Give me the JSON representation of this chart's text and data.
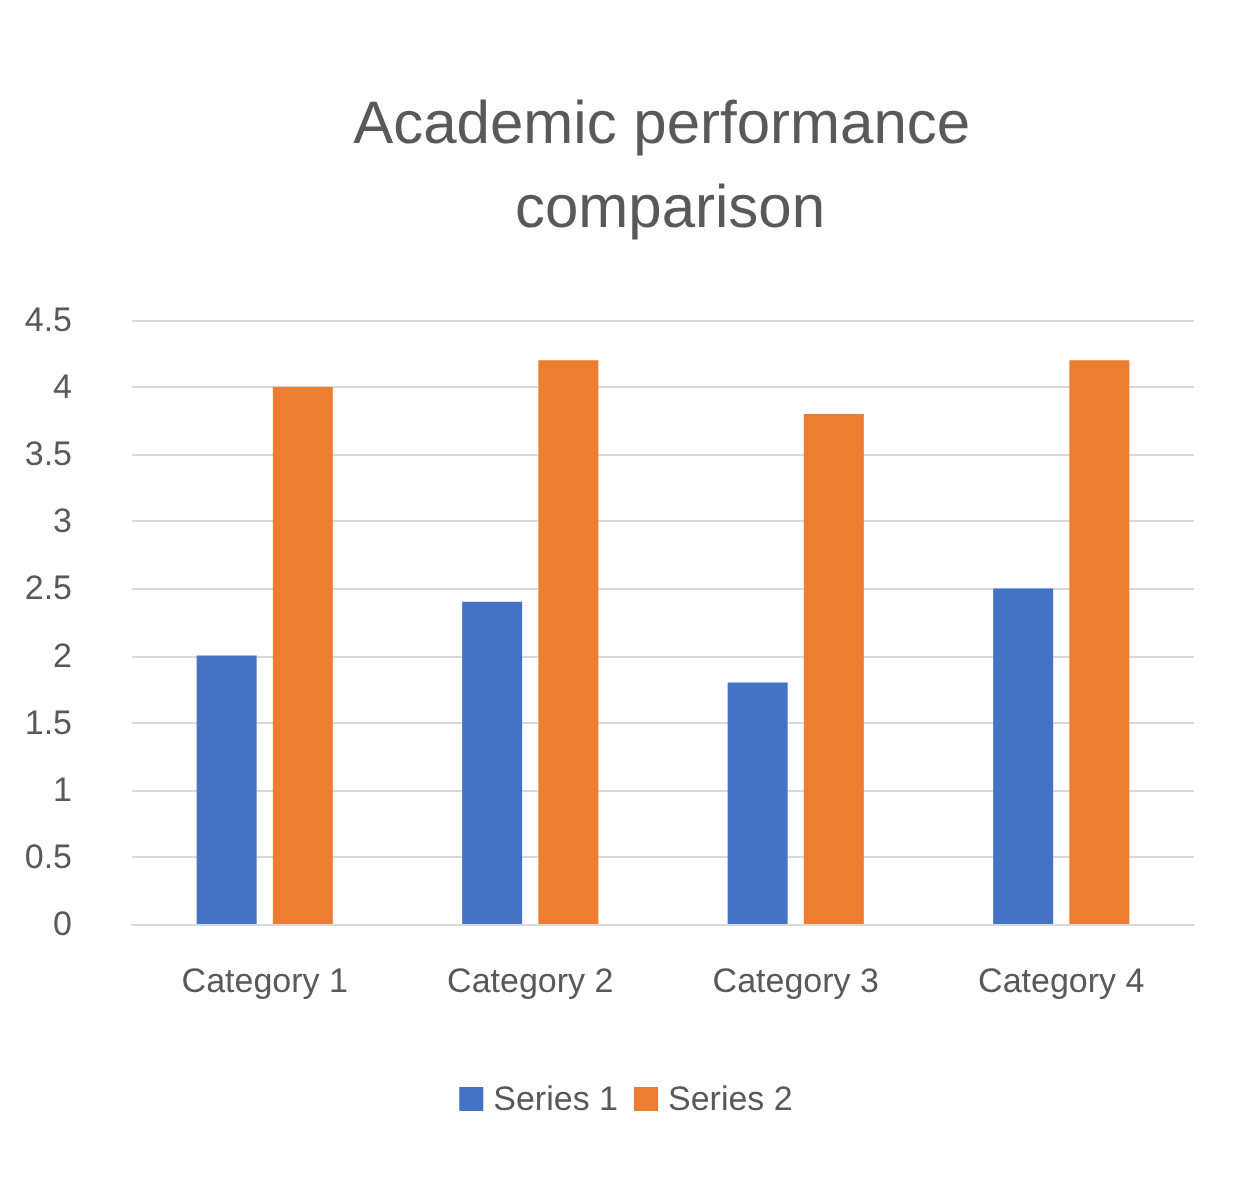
{
  "chart_data": {
    "type": "bar",
    "title": "Academic performance comparison",
    "categories": [
      "Category 1",
      "Category 2",
      "Category 3",
      "Category 4"
    ],
    "series": [
      {
        "name": "Series 1",
        "color": "#4472c4",
        "values": [
          2,
          2.4,
          1.8,
          2.5
        ]
      },
      {
        "name": "Series 2",
        "color": "#ed7d31",
        "values": [
          4,
          4.2,
          3.8,
          4.2
        ]
      }
    ],
    "ylim": [
      0,
      4.5
    ],
    "yticks": [
      0,
      0.5,
      1,
      1.5,
      2,
      2.5,
      3,
      3.5,
      4,
      4.5
    ],
    "grid": "y",
    "legend": "bottom"
  }
}
